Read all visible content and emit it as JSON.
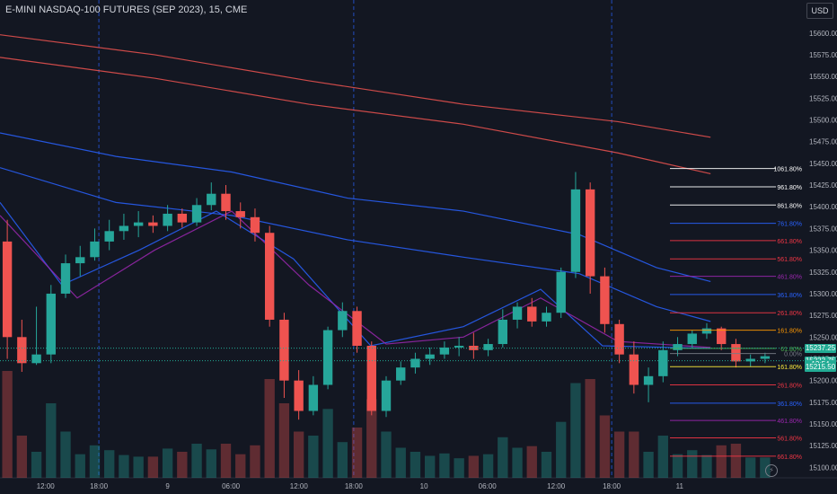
{
  "header": {
    "title": "E-MINI NASDAQ-100 FUTURES (SEP 2023), 15, CME",
    "currency": "USD"
  },
  "chart_data": {
    "type": "candlestick",
    "title": "E-MINI NASDAQ-100 FUTURES (SEP 2023), 15, CME",
    "y_axis": {
      "ylim": [
        15088,
        15638
      ],
      "ticks": [
        15600,
        15575,
        15550,
        15525,
        15500,
        15475,
        15450,
        15425,
        15400,
        15375,
        15350,
        15325,
        15300,
        15275,
        15250,
        15225,
        15200,
        15175,
        15150,
        15125,
        15100
      ],
      "tick_labels": [
        "15600.00",
        "15575.00",
        "15550.00",
        "15525.00",
        "15500.00",
        "15475.00",
        "15450.00",
        "15425.00",
        "15400.00",
        "15375.00",
        "15350.00",
        "15325.00",
        "15300.00",
        "15275.00",
        "15250.00",
        "15225.00",
        "15200.00",
        "15175.00",
        "15150.00",
        "15125.00",
        "15100.00"
      ],
      "last_price_labels": [
        {
          "text": "15237.25",
          "value": 15237.25,
          "color": "#22ab94"
        },
        {
          "text": "15222.75",
          "value": 15222.75,
          "color": "#22ab94"
        },
        {
          "text": "13:54",
          "value": 15218.5,
          "color": "#22ab94"
        },
        {
          "text": "15215.50",
          "value": 15215.5,
          "color": "#22ab94"
        }
      ]
    },
    "x_axis": {
      "range": [
        0,
        100
      ],
      "ticks": [
        {
          "x": 5.9,
          "label": "12:00"
        },
        {
          "x": 12.8,
          "label": "18:00"
        },
        {
          "x": 21.7,
          "label": "9"
        },
        {
          "x": 29.9,
          "label": "06:00"
        },
        {
          "x": 38.7,
          "label": "12:00"
        },
        {
          "x": 45.8,
          "label": "18:00"
        },
        {
          "x": 54.9,
          "label": "10"
        },
        {
          "x": 63.1,
          "label": "06:00"
        },
        {
          "x": 72.0,
          "label": "12:00"
        },
        {
          "x": 79.2,
          "label": "18:00"
        },
        {
          "x": 88.0,
          "label": "11"
        }
      ],
      "session_lines": [
        12.8,
        45.8,
        79.2
      ]
    },
    "candles": [
      [
        15360,
        15385,
        15250,
        15225
      ],
      [
        15250,
        15270,
        15220,
        15210
      ],
      [
        15220,
        15285,
        15230,
        15218
      ],
      [
        15230,
        15310,
        15300,
        15220
      ],
      [
        15300,
        15345,
        15335,
        15295
      ],
      [
        15335,
        15355,
        15342,
        15320
      ],
      [
        15342,
        15375,
        15360,
        15338
      ],
      [
        15360,
        15385,
        15372,
        15350
      ],
      [
        15372,
        15392,
        15378,
        15362
      ],
      [
        15378,
        15395,
        15382,
        15365
      ],
      [
        15382,
        15390,
        15378,
        15370
      ],
      [
        15378,
        15402,
        15392,
        15372
      ],
      [
        15392,
        15398,
        15382,
        15376
      ],
      [
        15382,
        15410,
        15402,
        15378
      ],
      [
        15402,
        15428,
        15415,
        15396
      ],
      [
        15415,
        15425,
        15395,
        15385
      ],
      [
        15395,
        15405,
        15388,
        15375
      ],
      [
        15388,
        15398,
        15370,
        15360
      ],
      [
        15370,
        15378,
        15270,
        15262
      ],
      [
        15270,
        15278,
        15200,
        15180
      ],
      [
        15200,
        15212,
        15165,
        15155
      ],
      [
        15165,
        15205,
        15195,
        15160
      ],
      [
        15195,
        15262,
        15258,
        15190
      ],
      [
        15258,
        15290,
        15280,
        15250
      ],
      [
        15280,
        15285,
        15240,
        15232
      ],
      [
        15240,
        15245,
        15165,
        15160
      ],
      [
        15165,
        15205,
        15200,
        15158
      ],
      [
        15200,
        15222,
        15215,
        15195
      ],
      [
        15215,
        15232,
        15225,
        15208
      ],
      [
        15225,
        15238,
        15230,
        15218
      ],
      [
        15230,
        15245,
        15238,
        15225
      ],
      [
        15238,
        15250,
        15240,
        15228
      ],
      [
        15240,
        15255,
        15235,
        15225
      ],
      [
        15235,
        15248,
        15242,
        15228
      ],
      [
        15242,
        15282,
        15270,
        15238
      ],
      [
        15270,
        15290,
        15285,
        15260
      ],
      [
        15285,
        15295,
        15268,
        15262
      ],
      [
        15268,
        15285,
        15278,
        15262
      ],
      [
        15278,
        15330,
        15325,
        15272
      ],
      [
        15325,
        15440,
        15420,
        15318
      ],
      [
        15420,
        15428,
        15320,
        15300
      ],
      [
        15320,
        15330,
        15265,
        15255
      ],
      [
        15265,
        15270,
        15230,
        15220
      ],
      [
        15230,
        15245,
        15195,
        15185
      ],
      [
        15195,
        15215,
        15205,
        15175
      ],
      [
        15205,
        15245,
        15235,
        15198
      ],
      [
        15235,
        15250,
        15242,
        15228
      ],
      [
        15242,
        15258,
        15254,
        15238
      ],
      [
        15254,
        15266,
        15260,
        15248
      ],
      [
        15260,
        15262,
        15242,
        15235
      ],
      [
        15242,
        15248,
        15222,
        15215
      ],
      [
        15222,
        15230,
        15225,
        15216
      ],
      [
        15225,
        15232,
        15228,
        15220
      ]
    ],
    "volume_series_present": true,
    "moving_averages": [
      {
        "color": "#ef5350",
        "points": [
          [
            0,
            15598
          ],
          [
            20,
            15575
          ],
          [
            40,
            15545
          ],
          [
            60,
            15518
          ],
          [
            80,
            15498
          ],
          [
            92,
            15480
          ]
        ]
      },
      {
        "color": "#ef5350",
        "points": [
          [
            0,
            15572
          ],
          [
            20,
            15548
          ],
          [
            40,
            15518
          ],
          [
            60,
            15495
          ],
          [
            80,
            15462
          ],
          [
            92,
            15438
          ]
        ]
      },
      {
        "color": "#2962ff",
        "points": [
          [
            0,
            15485
          ],
          [
            15,
            15458
          ],
          [
            30,
            15440
          ],
          [
            45,
            15410
          ],
          [
            60,
            15395
          ],
          [
            75,
            15368
          ],
          [
            85,
            15330
          ],
          [
            92,
            15314
          ]
        ]
      },
      {
        "color": "#2962ff",
        "points": [
          [
            0,
            15445
          ],
          [
            15,
            15405
          ],
          [
            30,
            15390
          ],
          [
            45,
            15362
          ],
          [
            60,
            15342
          ],
          [
            75,
            15323
          ],
          [
            85,
            15285
          ],
          [
            92,
            15268
          ]
        ]
      },
      {
        "color": "#2962ff",
        "points": [
          [
            0,
            15405
          ],
          [
            8,
            15310
          ],
          [
            18,
            15350
          ],
          [
            28,
            15395
          ],
          [
            38,
            15340
          ],
          [
            48,
            15240
          ],
          [
            60,
            15262
          ],
          [
            70,
            15305
          ],
          [
            78,
            15240
          ],
          [
            92,
            15237
          ]
        ]
      },
      {
        "color": "#9c27b0",
        "points": [
          [
            0,
            15390
          ],
          [
            10,
            15295
          ],
          [
            20,
            15350
          ],
          [
            30,
            15395
          ],
          [
            40,
            15310
          ],
          [
            50,
            15242
          ],
          [
            60,
            15250
          ],
          [
            70,
            15295
          ],
          [
            80,
            15245
          ],
          [
            92,
            15238
          ]
        ]
      }
    ],
    "fib_levels": [
      {
        "label": "1061.80%",
        "value": 15444,
        "color": "#ffffff"
      },
      {
        "label": "961.80%",
        "value": 15423,
        "color": "#ffffff"
      },
      {
        "label": "861.80%",
        "value": 15402,
        "color": "#ffffff"
      },
      {
        "label": "761.80%",
        "value": 15381,
        "color": "#2962ff"
      },
      {
        "label": "661.80%",
        "value": 15361,
        "color": "#f23645"
      },
      {
        "label": "561.80%",
        "value": 15340,
        "color": "#f23645"
      },
      {
        "label": "461.80%",
        "value": 15320,
        "color": "#9c27b0"
      },
      {
        "label": "361.80%",
        "value": 15299,
        "color": "#2962ff"
      },
      {
        "label": "261.80%",
        "value": 15278,
        "color": "#f23645"
      },
      {
        "label": "161.80%",
        "value": 15258,
        "color": "#ff9800"
      },
      {
        "label": "61.80%",
        "value": 15237,
        "color": "#4caf50"
      },
      {
        "label": "0.00%",
        "value": 15231,
        "color": "#787b86"
      },
      {
        "label": "161.80%",
        "value": 15216,
        "color": "#ffeb3b"
      },
      {
        "label": "261.80%",
        "value": 15195,
        "color": "#f23645"
      },
      {
        "label": "361.80%",
        "value": 15174,
        "color": "#2962ff"
      },
      {
        "label": "461.80%",
        "value": 15154,
        "color": "#9c27b0"
      },
      {
        "label": "561.80%",
        "value": 15134,
        "color": "#f23645"
      },
      {
        "label": "661.80%",
        "value": 15113,
        "color": "#f23645"
      }
    ],
    "colors": {
      "up": "#26a69a",
      "down": "#ef5350",
      "background": "#131722",
      "grid": "#2a2e39",
      "axis_text": "#b2b5be",
      "session_line": "#2962ff"
    }
  }
}
